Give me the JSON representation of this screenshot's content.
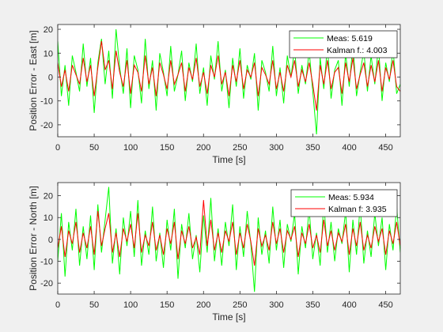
{
  "colors": {
    "measurement": "#00ff00",
    "kalman": "#ff0000",
    "axes": "#262626",
    "background": "#f0f0f0",
    "plot_area": "#ffffff"
  },
  "chart_data": [
    {
      "type": "line",
      "xlabel": "Time [s]",
      "ylabel": "Position Error - East [m]",
      "xlim": [
        0,
        470
      ],
      "ylim": [
        -25,
        22
      ],
      "xticks": [
        0,
        50,
        100,
        150,
        200,
        250,
        300,
        350,
        400,
        450
      ],
      "yticks": [
        -20,
        -10,
        0,
        10,
        20
      ],
      "grid": false,
      "legend_position": "top-right",
      "series": [
        {
          "name": "Meas: 5.619",
          "color": "#00ff00",
          "x": [
            0,
            5,
            10,
            15,
            20,
            25,
            30,
            35,
            40,
            45,
            50,
            55,
            60,
            65,
            70,
            75,
            80,
            85,
            90,
            95,
            100,
            105,
            110,
            115,
            120,
            125,
            130,
            135,
            140,
            145,
            150,
            155,
            160,
            165,
            170,
            175,
            180,
            185,
            190,
            195,
            200,
            205,
            210,
            215,
            220,
            225,
            230,
            235,
            240,
            245,
            250,
            255,
            260,
            265,
            270,
            275,
            280,
            285,
            290,
            295,
            300,
            305,
            310,
            315,
            320,
            325,
            330,
            335,
            340,
            345,
            350,
            355,
            360,
            365,
            370,
            375,
            380,
            385,
            390,
            395,
            400,
            405,
            410,
            415,
            420,
            425,
            430,
            435,
            440,
            445,
            450,
            455,
            460,
            465,
            470
          ],
          "values": [
            15,
            -8,
            5,
            -12,
            9,
            2,
            -6,
            14,
            -4,
            8,
            -15,
            6,
            16,
            -3,
            11,
            -9,
            20,
            4,
            -7,
            12,
            -13,
            9,
            3,
            -11,
            16,
            -5,
            7,
            -14,
            10,
            2,
            -8,
            13,
            -6,
            1,
            11,
            -10,
            6,
            -2,
            14,
            -7,
            4,
            -12,
            9,
            -1,
            15,
            -6,
            3,
            -13,
            8,
            -4,
            12,
            -9,
            5,
            -1,
            10,
            -14,
            7,
            2,
            -6,
            13,
            -8,
            4,
            -11,
            9,
            0,
            12,
            -7,
            5,
            -3,
            11,
            -6,
            -24,
            8,
            -5,
            13,
            -9,
            3,
            7,
            -12,
            10,
            -4,
            14,
            -8,
            2,
            11,
            -6,
            9,
            -3,
            13,
            -10,
            6,
            -2,
            12,
            -7,
            -3
          ]
        },
        {
          "name": "Kalman f.: 4.003",
          "color": "#ff0000",
          "x": [
            0,
            5,
            10,
            15,
            20,
            25,
            30,
            35,
            40,
            45,
            50,
            55,
            60,
            65,
            70,
            75,
            80,
            85,
            90,
            95,
            100,
            105,
            110,
            115,
            120,
            125,
            130,
            135,
            140,
            145,
            150,
            155,
            160,
            165,
            170,
            175,
            180,
            185,
            190,
            195,
            200,
            205,
            210,
            215,
            220,
            225,
            230,
            235,
            240,
            245,
            250,
            255,
            260,
            265,
            270,
            275,
            280,
            285,
            290,
            295,
            300,
            305,
            310,
            315,
            320,
            325,
            330,
            335,
            340,
            345,
            350,
            355,
            360,
            365,
            370,
            375,
            380,
            385,
            390,
            395,
            400,
            405,
            410,
            415,
            420,
            425,
            430,
            435,
            440,
            445,
            450,
            455,
            460,
            465,
            470
          ],
          "values": [
            6,
            -4,
            3,
            -6,
            5,
            1,
            -3,
            8,
            -2,
            5,
            -8,
            4,
            15,
            3,
            7,
            -5,
            11,
            2,
            -4,
            7,
            -7,
            5,
            2,
            -6,
            9,
            -3,
            4,
            -8,
            6,
            1,
            -5,
            7,
            -3,
            1,
            6,
            -6,
            4,
            -1,
            8,
            -4,
            2,
            -7,
            5,
            0,
            9,
            -3,
            2,
            -8,
            5,
            -2,
            7,
            -5,
            3,
            0,
            6,
            -8,
            4,
            1,
            -3,
            7,
            -5,
            2,
            -6,
            5,
            0,
            7,
            -4,
            3,
            -2,
            6,
            -3,
            -14,
            5,
            -3,
            7,
            -5,
            2,
            4,
            -7,
            6,
            -2,
            8,
            -5,
            1,
            6,
            -4,
            5,
            -2,
            7,
            -6,
            4,
            -1,
            7,
            -4,
            -6
          ]
        }
      ]
    },
    {
      "type": "line",
      "xlabel": "Time [s]",
      "ylabel": "Position Error - North [m]",
      "xlim": [
        0,
        470
      ],
      "ylim": [
        -25,
        26
      ],
      "xticks": [
        0,
        50,
        100,
        150,
        200,
        250,
        300,
        350,
        400,
        450
      ],
      "yticks": [
        -20,
        -10,
        0,
        10,
        20
      ],
      "grid": false,
      "legend_position": "top-right",
      "series": [
        {
          "name": "Meas: 5.934",
          "color": "#00ff00",
          "x": [
            0,
            5,
            10,
            15,
            20,
            25,
            30,
            35,
            40,
            45,
            50,
            55,
            60,
            65,
            70,
            75,
            80,
            85,
            90,
            95,
            100,
            105,
            110,
            115,
            120,
            125,
            130,
            135,
            140,
            145,
            150,
            155,
            160,
            165,
            170,
            175,
            180,
            185,
            190,
            195,
            200,
            205,
            210,
            215,
            220,
            225,
            230,
            235,
            240,
            245,
            250,
            255,
            260,
            265,
            270,
            275,
            280,
            285,
            290,
            295,
            300,
            305,
            310,
            315,
            320,
            325,
            330,
            335,
            340,
            345,
            350,
            355,
            360,
            365,
            370,
            375,
            380,
            385,
            390,
            395,
            400,
            405,
            410,
            415,
            420,
            425,
            430,
            435,
            440,
            445,
            450,
            455,
            460,
            465,
            470
          ],
          "values": [
            -10,
            12,
            -17,
            8,
            -5,
            14,
            -12,
            6,
            -9,
            11,
            -14,
            16,
            -6,
            9,
            24,
            -11,
            5,
            -16,
            10,
            -3,
            13,
            -8,
            18,
            -12,
            4,
            -7,
            15,
            -10,
            3,
            -13,
            9,
            -5,
            14,
            -18,
            7,
            -4,
            12,
            -9,
            2,
            -15,
            11,
            -6,
            19,
            -10,
            5,
            -12,
            8,
            -3,
            16,
            -14,
            6,
            -8,
            13,
            -2,
            -24,
            10,
            -7,
            4,
            -11,
            15,
            -5,
            9,
            -13,
            7,
            -1,
            12,
            -16,
            6,
            -4,
            14,
            -9,
            3,
            -12,
            17,
            -6,
            8,
            -10,
            5,
            -2,
            13,
            -15,
            9,
            -7,
            16,
            -11,
            4,
            -8,
            12,
            -3,
            10,
            -14,
            7,
            -5,
            15,
            -6
          ]
        },
        {
          "name": "Kalman f: 3.935",
          "color": "#ff0000",
          "x": [
            0,
            5,
            10,
            15,
            20,
            25,
            30,
            35,
            40,
            45,
            50,
            55,
            60,
            65,
            70,
            75,
            80,
            85,
            90,
            95,
            100,
            105,
            110,
            115,
            120,
            125,
            130,
            135,
            140,
            145,
            150,
            155,
            160,
            165,
            170,
            175,
            180,
            185,
            190,
            195,
            200,
            205,
            210,
            215,
            220,
            225,
            230,
            235,
            240,
            245,
            250,
            255,
            260,
            265,
            270,
            275,
            280,
            285,
            290,
            295,
            300,
            305,
            310,
            315,
            320,
            325,
            330,
            335,
            340,
            345,
            350,
            355,
            360,
            365,
            370,
            375,
            380,
            385,
            390,
            395,
            400,
            405,
            410,
            415,
            420,
            425,
            430,
            435,
            440,
            445,
            450,
            455,
            460,
            465,
            470
          ],
          "values": [
            -4,
            6,
            -8,
            4,
            -2,
            8,
            -6,
            3,
            -4,
            6,
            -7,
            13,
            -3,
            5,
            12,
            -6,
            3,
            -8,
            5,
            -1,
            7,
            -4,
            12,
            -6,
            2,
            -3,
            8,
            -5,
            2,
            -7,
            5,
            -2,
            8,
            -9,
            4,
            -2,
            6,
            -4,
            1,
            -7,
            18,
            -3,
            9,
            -5,
            3,
            -6,
            4,
            -1,
            8,
            -7,
            3,
            -4,
            7,
            -1,
            -12,
            5,
            -3,
            2,
            -5,
            8,
            -2,
            5,
            -6,
            4,
            0,
            6,
            -8,
            3,
            -2,
            7,
            -4,
            2,
            -6,
            9,
            -3,
            4,
            -5,
            3,
            -1,
            7,
            -7,
            5,
            -3,
            8,
            -5,
            2,
            -4,
            6,
            -1,
            5,
            -7,
            4,
            -2,
            8,
            -3
          ]
        }
      ]
    }
  ]
}
